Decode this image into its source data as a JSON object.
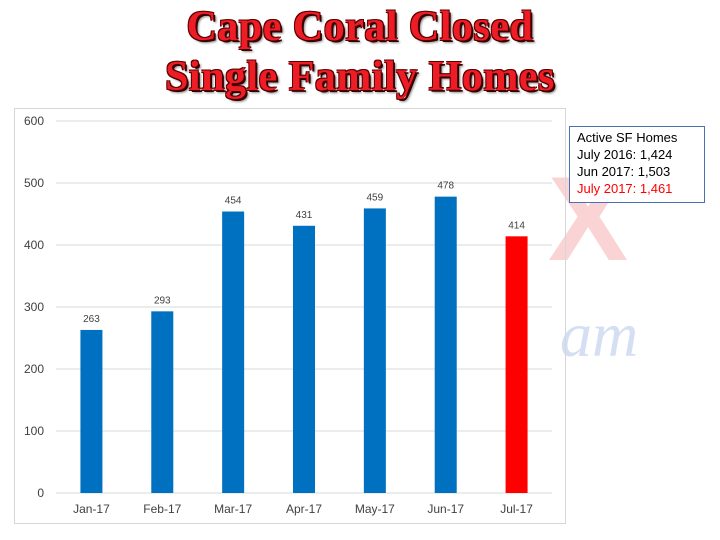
{
  "title": {
    "line1": "Cape Coral Closed",
    "line2": "Single Family Homes"
  },
  "watermark": {
    "letters": "X",
    "script": "am"
  },
  "info_box": {
    "heading": "Active SF Homes",
    "lines": [
      {
        "text": "July 2016: 1,424",
        "color": "#000000"
      },
      {
        "text": "Jun 2017: 1,503",
        "color": "#000000"
      },
      {
        "text": "July 2017: 1,461",
        "color": "#ff0000"
      }
    ]
  },
  "colors": {
    "bar_blue": "#0070c0",
    "bar_highlight": "#ff0000",
    "title_red": "#ee1c24",
    "grid": "#d9d9d9"
  },
  "chart_data": {
    "type": "bar",
    "title": "Cape Coral Closed Single Family Homes",
    "categories": [
      "Jan-17",
      "Feb-17",
      "Mar-17",
      "Apr-17",
      "May-17",
      "Jun-17",
      "Jul-17"
    ],
    "values": [
      263,
      293,
      454,
      431,
      459,
      478,
      414
    ],
    "data_labels": [
      "263",
      "293",
      "454",
      "431",
      "459",
      "478",
      "414"
    ],
    "highlight_index": 6,
    "ylim": [
      0,
      600
    ],
    "yticks": [
      0,
      100,
      200,
      300,
      400,
      500,
      600
    ],
    "ytick_labels": [
      "0",
      "100",
      "200",
      "300",
      "400",
      "500",
      "600"
    ],
    "xlabel": "",
    "ylabel": "",
    "grid": true,
    "legend": "none"
  }
}
